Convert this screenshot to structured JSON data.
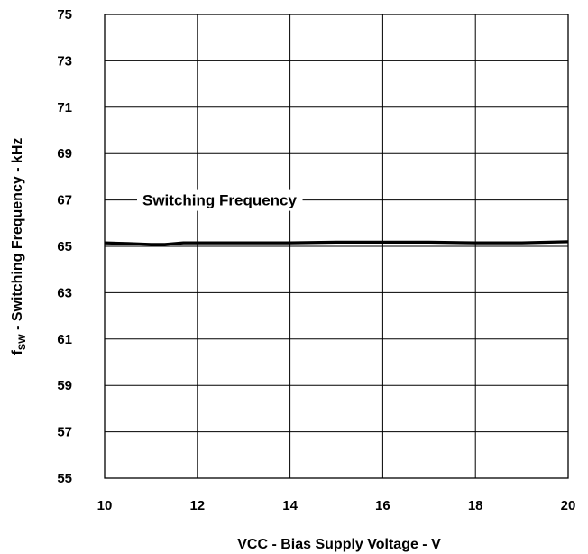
{
  "chart_data": {
    "type": "line",
    "title": "",
    "xlabel": "VCC - Bias Supply Voltage - V",
    "ylabel": {
      "prefix": "f",
      "subscript": "SW",
      "suffix": " - Switching Frequency - kHz"
    },
    "xlim": [
      10,
      20
    ],
    "ylim": [
      55,
      75
    ],
    "xticks": [
      10,
      12,
      14,
      16,
      18,
      20
    ],
    "yticks": [
      55,
      57,
      59,
      61,
      63,
      65,
      67,
      69,
      71,
      73,
      75
    ],
    "grid": true,
    "series": [
      {
        "name": "Switching Frequency",
        "x": [
          10,
          10.5,
          11,
          11.3,
          11.7,
          12,
          13,
          14,
          15,
          16,
          17,
          18,
          19,
          20
        ],
        "y": [
          65.15,
          65.12,
          65.08,
          65.08,
          65.15,
          65.15,
          65.15,
          65.15,
          65.18,
          65.18,
          65.18,
          65.15,
          65.15,
          65.2
        ]
      }
    ]
  }
}
